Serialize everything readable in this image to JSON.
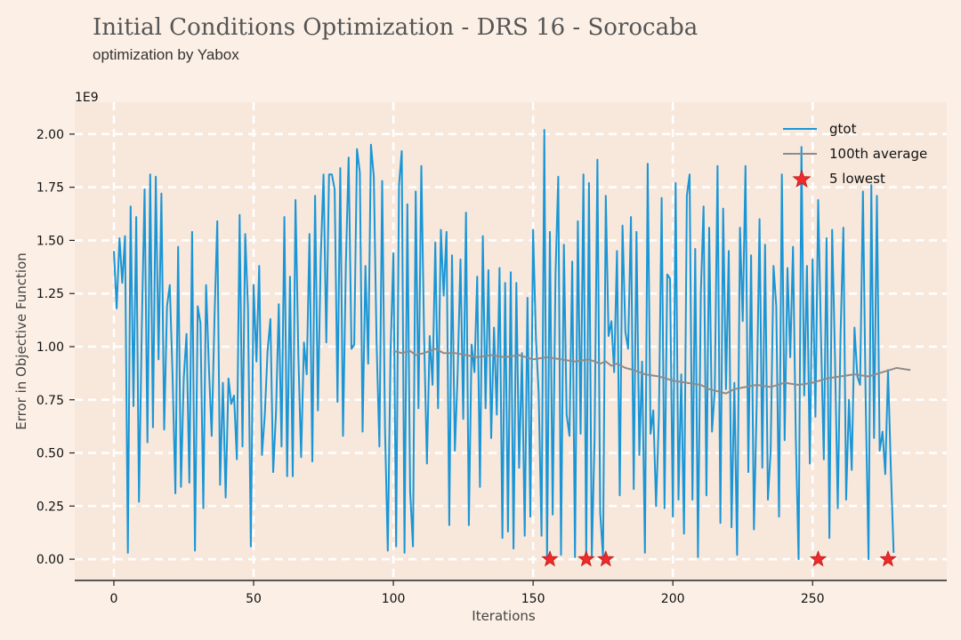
{
  "header": {
    "title": "Initial Conditions Optimization - DRS 16 - Sorocaba",
    "subtitle": "optimization by Yabox"
  },
  "chart_data": {
    "type": "line",
    "xlabel": "Iterations",
    "ylabel": "Error in Objective Function",
    "y_scale_label": "1E9",
    "xlim": [
      -14,
      298
    ],
    "ylim": [
      -0.1,
      2.15
    ],
    "xticks": [
      0,
      50,
      100,
      150,
      200,
      250
    ],
    "yticks": [
      0.0,
      0.25,
      0.5,
      0.75,
      1.0,
      1.25,
      1.5,
      1.75,
      2.0
    ],
    "ytick_labels": [
      "0.00",
      "0.25",
      "0.50",
      "0.75",
      "1.00",
      "1.25",
      "1.50",
      "1.75",
      "2.00"
    ],
    "grid": true,
    "legend_position": "top-right",
    "colors": {
      "gtot": "#1a96d6",
      "average": "#8c8c8c",
      "lowest": "#ee2a2a",
      "background": "#fcf0e6",
      "plot_bg": "#f8e8dc"
    },
    "series": [
      {
        "name": "gtot",
        "kind": "line",
        "x_start": 0,
        "values": [
          1.45,
          1.18,
          1.51,
          1.3,
          1.52,
          0.03,
          1.66,
          0.72,
          1.61,
          0.27,
          1.1,
          1.74,
          0.55,
          1.81,
          0.62,
          1.8,
          0.94,
          1.72,
          0.61,
          1.19,
          1.29,
          0.87,
          0.31,
          1.47,
          0.34,
          0.85,
          1.06,
          0.36,
          1.54,
          0.04,
          1.19,
          1.11,
          0.24,
          1.29,
          0.9,
          0.58,
          1.14,
          1.59,
          0.35,
          0.83,
          0.29,
          0.85,
          0.73,
          0.77,
          0.47,
          1.62,
          0.53,
          1.53,
          1.18,
          0.06,
          1.29,
          0.93,
          1.38,
          0.49,
          0.68,
          0.98,
          1.13,
          0.41,
          0.69,
          1.2,
          0.53,
          1.61,
          0.39,
          1.33,
          0.39,
          1.69,
          0.96,
          0.48,
          1.02,
          0.87,
          1.53,
          0.46,
          1.71,
          0.7,
          1.41,
          1.81,
          1.02,
          1.81,
          1.81,
          1.74,
          0.74,
          1.84,
          0.58,
          1.39,
          1.89,
          0.99,
          1.01,
          1.93,
          1.82,
          0.6,
          1.38,
          0.92,
          1.95,
          1.8,
          1.02,
          0.53,
          1.78,
          0.61,
          0.04,
          0.97,
          1.44,
          0.06,
          1.76,
          1.92,
          0.03,
          1.67,
          0.32,
          0.06,
          1.73,
          0.71,
          1.85,
          1.05,
          0.45,
          1.05,
          0.82,
          1.49,
          0.71,
          1.55,
          1.24,
          1.54,
          0.16,
          1.43,
          0.51,
          0.87,
          1.41,
          0.66,
          1.63,
          0.16,
          1.01,
          0.88,
          1.33,
          0.34,
          1.52,
          0.71,
          1.36,
          0.57,
          1.09,
          0.68,
          1.37,
          0.1,
          1.3,
          0.13,
          1.35,
          0.05,
          1.3,
          0.43,
          0.97,
          0.11,
          1.23,
          0.2,
          1.55,
          1.04,
          0.78,
          0.11,
          2.02,
          0.0,
          1.54,
          0.21,
          1.34,
          1.8,
          0.02,
          1.48,
          0.68,
          0.58,
          1.4,
          0.01,
          1.59,
          0.59,
          1.81,
          0.01,
          1.77,
          0.01,
          0.57,
          1.88,
          0.22,
          0.01,
          1.71,
          1.05,
          1.12,
          0.88,
          1.45,
          0.3,
          1.57,
          1.07,
          0.99,
          1.61,
          0.33,
          1.54,
          0.49,
          0.93,
          0.03,
          1.86,
          0.59,
          0.7,
          0.25,
          0.67,
          1.7,
          0.24,
          1.34,
          1.32,
          0.2,
          1.77,
          0.28,
          0.87,
          0.12,
          1.71,
          1.81,
          0.28,
          1.46,
          0.01,
          1.25,
          1.66,
          0.3,
          1.56,
          0.6,
          0.8,
          1.85,
          0.17,
          1.65,
          0.8,
          1.45,
          0.15,
          0.83,
          0.02,
          1.56,
          1.12,
          1.85,
          0.41,
          1.43,
          0.14,
          0.73,
          1.6,
          0.43,
          1.48,
          0.28,
          0.51,
          1.38,
          1.19,
          0.2,
          1.81,
          0.56,
          1.37,
          0.95,
          1.47,
          0.56,
          0.0,
          1.94,
          0.77,
          1.38,
          0.45,
          1.41,
          0.67,
          1.69,
          1.04,
          0.47,
          1.51,
          0.1,
          1.55,
          0.95,
          0.24,
          1.05,
          1.56,
          0.28,
          0.75,
          0.42,
          1.09,
          0.86,
          0.82,
          1.73,
          0.74,
          0.0,
          1.76,
          0.57,
          1.71,
          0.51,
          0.6,
          0.4,
          0.89,
          0.42,
          0.03
        ]
      },
      {
        "name": "100th average",
        "kind": "line",
        "x": [
          100,
          103,
          106,
          108,
          111,
          115,
          118,
          122,
          126,
          130,
          135,
          140,
          145,
          150,
          155,
          160,
          165,
          170,
          174,
          176,
          178,
          180,
          183,
          186,
          190,
          195,
          200,
          205,
          210,
          213,
          216,
          219,
          222,
          226,
          230,
          235,
          240,
          245,
          250,
          255,
          260,
          265,
          270,
          275,
          280,
          285
        ],
        "values": [
          0.98,
          0.97,
          0.98,
          0.96,
          0.97,
          0.99,
          0.97,
          0.97,
          0.96,
          0.95,
          0.96,
          0.95,
          0.96,
          0.94,
          0.95,
          0.94,
          0.93,
          0.94,
          0.92,
          0.93,
          0.91,
          0.92,
          0.9,
          0.89,
          0.87,
          0.86,
          0.84,
          0.83,
          0.82,
          0.8,
          0.79,
          0.78,
          0.8,
          0.81,
          0.82,
          0.81,
          0.83,
          0.82,
          0.83,
          0.85,
          0.86,
          0.87,
          0.86,
          0.88,
          0.9,
          0.89
        ]
      },
      {
        "name": "5 lowest",
        "kind": "scatter",
        "x": [
          156,
          169,
          176,
          252,
          277
        ],
        "values": [
          0.0,
          0.0,
          0.0,
          0.0,
          0.0
        ]
      }
    ]
  }
}
